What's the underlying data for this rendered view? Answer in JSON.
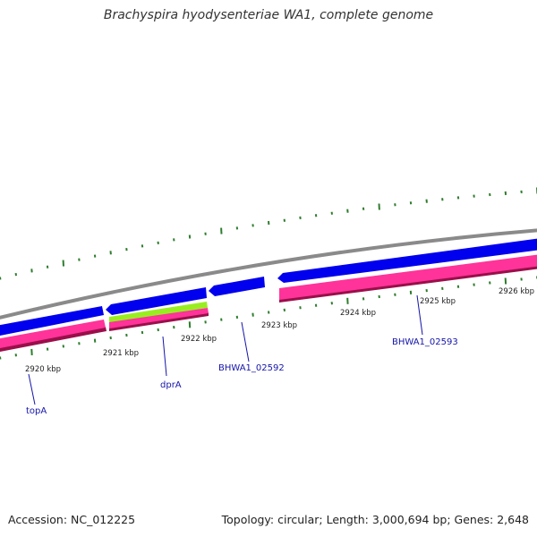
{
  "title": "Brachyspira hyodysenteriae WA1, complete genome",
  "footer": {
    "accession": "Accession: NC_012225",
    "summary": "Topology: circular; Length: 3,000,694 bp; Genes: 2,648"
  },
  "colors": {
    "backbone": "#8a8a8a",
    "forward_gene": "#0000ee",
    "reverse_gene": "#ff3399",
    "reverse_gene_shadow": "#9a0f4a",
    "highlight_gene": "#99ee22",
    "ticks": "#2e7d2e",
    "gene_label": "#1515aa"
  },
  "scale_labels": [
    "2920 kbp",
    "2921 kbp",
    "2922 kbp",
    "2923 kbp",
    "2924 kbp",
    "2925 kbp",
    "2926 kbp"
  ],
  "gene_labels": [
    "topA",
    "dprA",
    "BHWA1_02592",
    "BHWA1_02593"
  ]
}
